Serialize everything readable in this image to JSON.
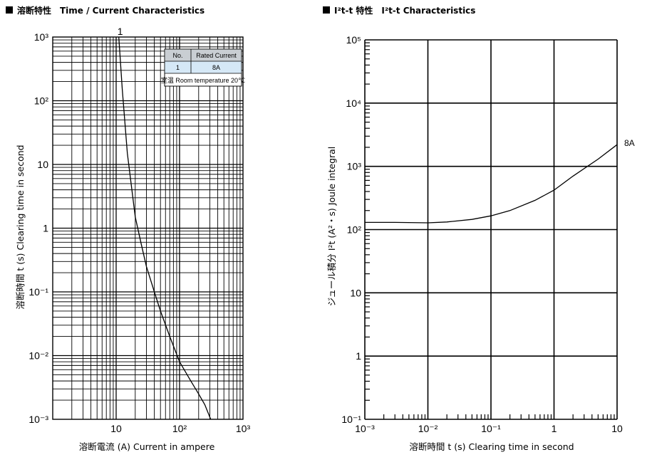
{
  "titles": {
    "left": "溶断特性　Time / Current Characteristics",
    "right": "I²t-t 特性　I²t-t Characteristics"
  },
  "chart_data": [
    {
      "type": "line",
      "title": "Time / Current Characteristics",
      "xlabel": "溶断電流 (A)  Current in ampere",
      "ylabel": "溶断時間 t (s)  Clearing time in second",
      "xscale": "log",
      "yscale": "log",
      "xlim": [
        1,
        1000
      ],
      "ylim": [
        0.001,
        1000
      ],
      "x_tick_labels": [
        "10",
        "10²",
        "10³"
      ],
      "y_tick_labels": [
        "10⁻³",
        "10⁻²",
        "10⁻¹",
        "1",
        "10",
        "10²",
        "10³"
      ],
      "grid": true,
      "series": [
        {
          "name": "1",
          "x": [
            11,
            12.5,
            15,
            20,
            25,
            30,
            40,
            50,
            70,
            100,
            150,
            200,
            250,
            310
          ],
          "y": [
            1000,
            150,
            15,
            1.5,
            0.55,
            0.25,
            0.1,
            0.05,
            0.02,
            0.008,
            0.004,
            0.0025,
            0.0017,
            0.001
          ]
        }
      ],
      "table": {
        "header": [
          "No.",
          "Rated Current"
        ],
        "rows": [
          [
            "1",
            "8A"
          ]
        ],
        "note": "室温 Room temperature 20℃"
      }
    },
    {
      "type": "line",
      "title": "I²t-t Characteristics",
      "xlabel": "溶断時間 t (s)  Clearing time in second",
      "ylabel": "ジュール積分 I²t (A²・s)  Joule integral",
      "xscale": "log",
      "yscale": "log",
      "xlim": [
        0.001,
        10
      ],
      "ylim": [
        0.1,
        100000
      ],
      "x_tick_labels": [
        "10⁻³",
        "10⁻²",
        "10⁻¹",
        "1",
        "10"
      ],
      "y_tick_labels": [
        "10⁻¹",
        "1",
        "10",
        "10²",
        "10³",
        "10⁴",
        "10⁵"
      ],
      "grid": true,
      "series": [
        {
          "name": "8A",
          "x": [
            0.001,
            0.003,
            0.01,
            0.02,
            0.05,
            0.1,
            0.2,
            0.5,
            1,
            2,
            5,
            10
          ],
          "y": [
            130,
            130,
            128,
            132,
            145,
            165,
            200,
            290,
            420,
            700,
            1300,
            2200
          ]
        }
      ]
    }
  ]
}
